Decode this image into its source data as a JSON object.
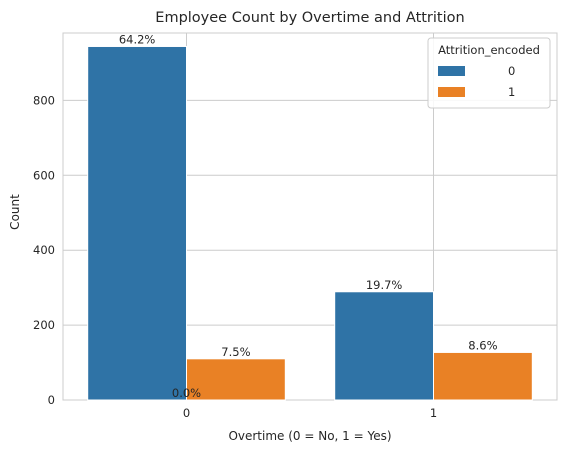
{
  "chart_data": {
    "type": "bar",
    "title": "Employee Count by Overtime and Attrition",
    "xlabel": "Overtime (0 = No, 1 = Yes)",
    "ylabel": "Count",
    "categories": [
      "0",
      "1"
    ],
    "ylim": [
      0,
      980
    ],
    "yticks": [
      0,
      200,
      400,
      600,
      800
    ],
    "grid": true,
    "legend": {
      "title": "Attrition_encoded",
      "placement": "top-right"
    },
    "series": [
      {
        "name": "0",
        "color": "#2f73a6",
        "values": [
          944,
          289
        ],
        "labels": [
          "64.2%",
          "19.7%"
        ]
      },
      {
        "name": "1",
        "color": "#e98125",
        "values": [
          110,
          127
        ],
        "labels": [
          "7.5%",
          "8.6%"
        ]
      }
    ],
    "annotations": [
      {
        "text": "0.0%",
        "category": "0",
        "y": 0
      }
    ]
  }
}
